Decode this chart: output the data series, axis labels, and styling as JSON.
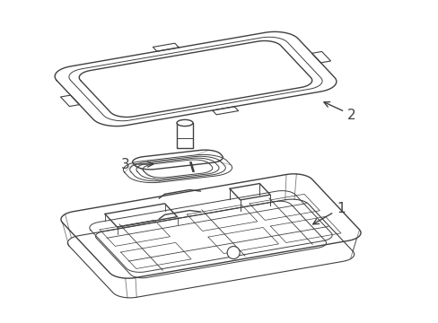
{
  "background_color": "#ffffff",
  "line_color": "#404040",
  "line_width": 1.0,
  "label_1": "1",
  "label_2": "2",
  "label_3": "3",
  "figsize": [
    4.89,
    3.6
  ],
  "dpi": 100
}
